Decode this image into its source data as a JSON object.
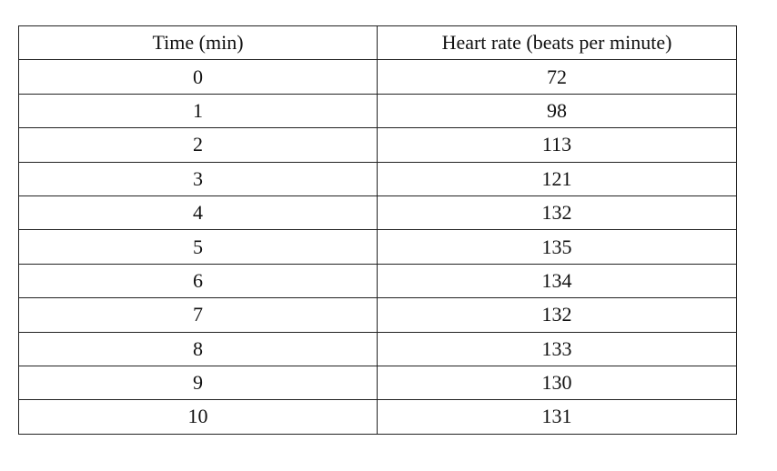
{
  "table": {
    "headers": [
      "Time (min)",
      "Heart rate (beats per minute)"
    ],
    "rows": [
      [
        "0",
        "72"
      ],
      [
        "1",
        "98"
      ],
      [
        "2",
        "113"
      ],
      [
        "3",
        "121"
      ],
      [
        "4",
        "132"
      ],
      [
        "5",
        "135"
      ],
      [
        "6",
        "134"
      ],
      [
        "7",
        "132"
      ],
      [
        "8",
        "133"
      ],
      [
        "9",
        "130"
      ],
      [
        "10",
        "131"
      ]
    ]
  }
}
